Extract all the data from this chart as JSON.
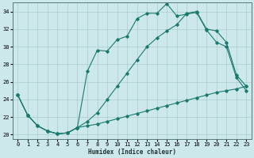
{
  "xlabel": "Humidex (Indice chaleur)",
  "bg_color": "#cce8ea",
  "grid_color": "#aacccc",
  "line_color": "#1a7a6e",
  "xlim": [
    -0.5,
    23.5
  ],
  "ylim": [
    19.5,
    35.0
  ],
  "yticks": [
    20,
    22,
    24,
    26,
    28,
    30,
    32,
    34
  ],
  "xticks": [
    0,
    1,
    2,
    3,
    4,
    5,
    6,
    7,
    8,
    9,
    10,
    11,
    12,
    13,
    14,
    15,
    16,
    17,
    18,
    19,
    20,
    21,
    22,
    23
  ],
  "line1_x": [
    0,
    1,
    2,
    3,
    4,
    5,
    6,
    7,
    8,
    9,
    10,
    11,
    12,
    13,
    14,
    15,
    16,
    17,
    18,
    19,
    20,
    21,
    22,
    23
  ],
  "line1_y": [
    24.5,
    22.2,
    21.0,
    20.4,
    20.1,
    20.2,
    20.8,
    27.2,
    29.6,
    29.5,
    30.8,
    31.2,
    33.2,
    33.8,
    33.8,
    34.9,
    33.5,
    33.7,
    33.9,
    31.9,
    30.5,
    30.0,
    26.5,
    25.0
  ],
  "line2_x": [
    0,
    1,
    2,
    3,
    4,
    5,
    6,
    7,
    8,
    9,
    10,
    11,
    12,
    13,
    14,
    15,
    16,
    17,
    18,
    19,
    20,
    21,
    22,
    23
  ],
  "line2_y": [
    24.5,
    22.2,
    21.0,
    20.4,
    20.1,
    20.2,
    20.8,
    21.5,
    22.5,
    24.0,
    25.5,
    27.0,
    28.5,
    30.0,
    31.0,
    31.8,
    32.5,
    33.8,
    34.0,
    32.0,
    31.8,
    30.5,
    26.8,
    25.5
  ],
  "line3_x": [
    0,
    1,
    2,
    3,
    4,
    5,
    6,
    7,
    8,
    9,
    10,
    11,
    12,
    13,
    14,
    15,
    16,
    17,
    18,
    19,
    20,
    21,
    22,
    23
  ],
  "line3_y": [
    24.5,
    22.2,
    21.0,
    20.4,
    20.1,
    20.2,
    20.8,
    21.0,
    21.2,
    21.5,
    21.8,
    22.1,
    22.4,
    22.7,
    23.0,
    23.3,
    23.6,
    23.9,
    24.2,
    24.5,
    24.8,
    25.0,
    25.2,
    25.5
  ]
}
